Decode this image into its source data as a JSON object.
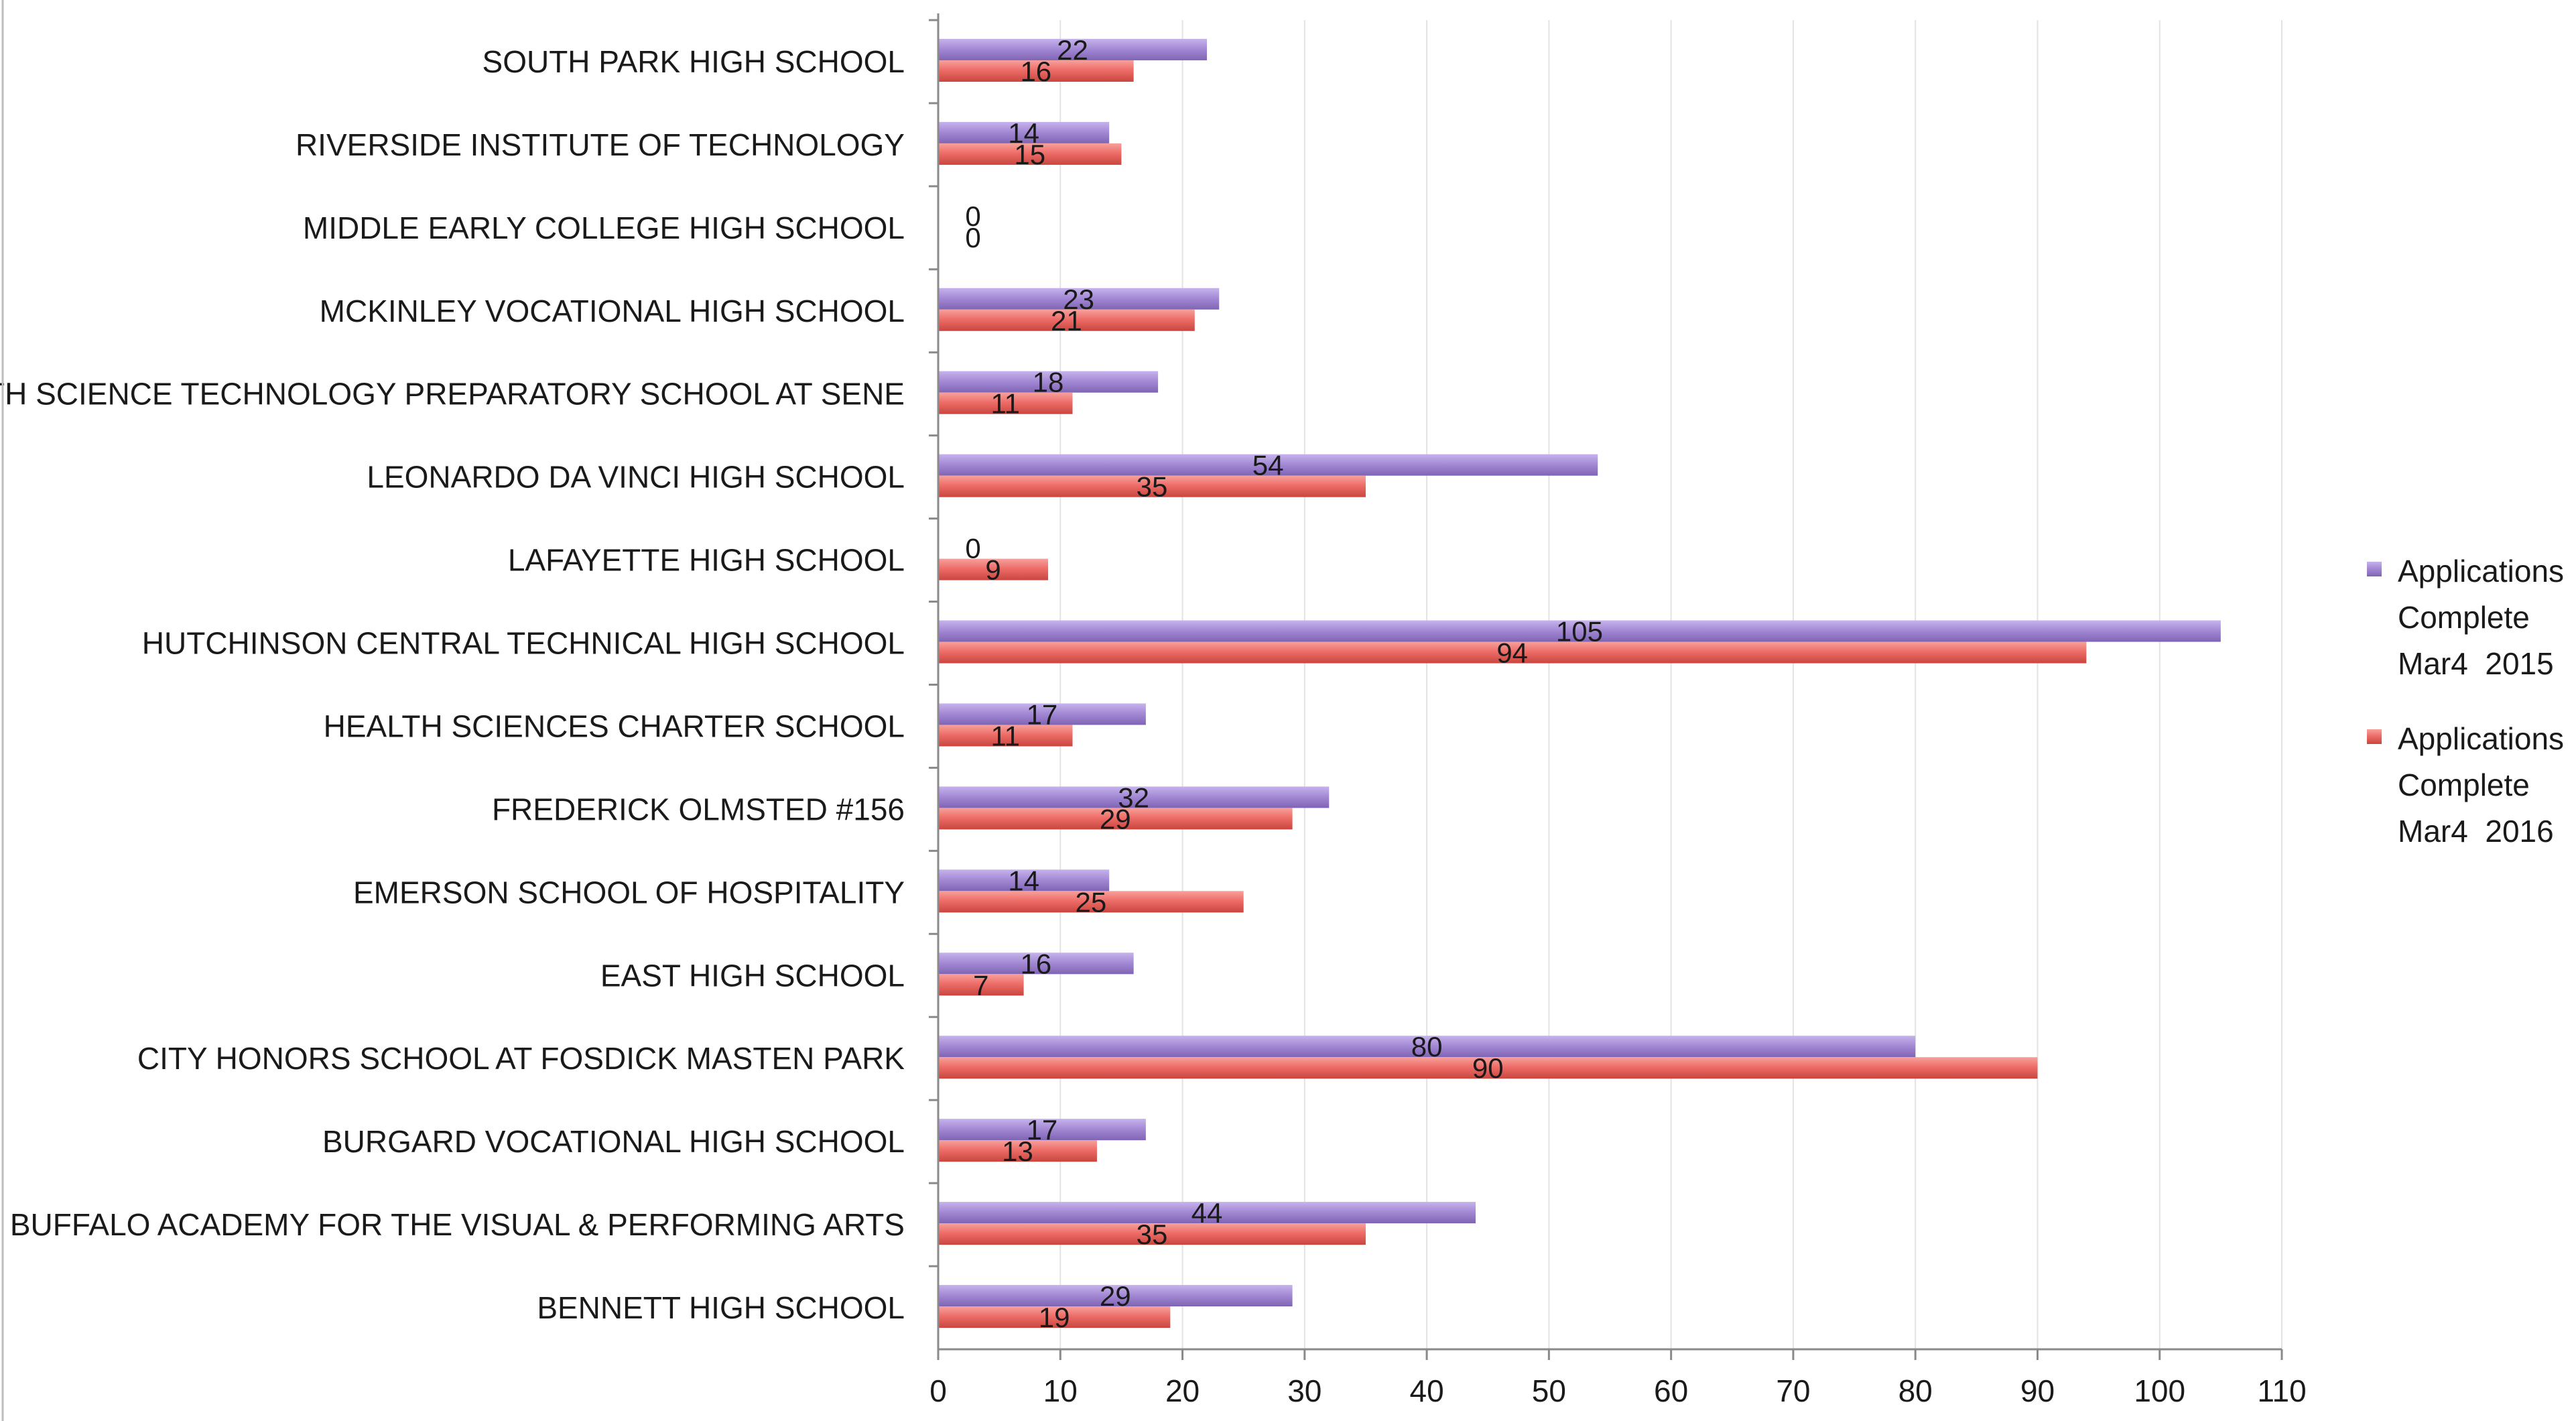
{
  "chart_data": {
    "type": "bar",
    "orientation": "horizontal",
    "categories": [
      "SOUTH PARK HIGH SCHOOL",
      "RIVERSIDE INSTITUTE OF TECHNOLOGY",
      "MIDDLE EARLY COLLEGE HIGH SCHOOL",
      "MCKINLEY VOCATIONAL HIGH SCHOOL",
      "MATH SCIENCE TECHNOLOGY PREPARATORY SCHOOL AT SENE",
      "LEONARDO DA VINCI HIGH SCHOOL",
      "LAFAYETTE HIGH SCHOOL",
      "HUTCHINSON CENTRAL TECHNICAL HIGH SCHOOL",
      "HEALTH SCIENCES CHARTER SCHOOL",
      "FREDERICK OLMSTED #156",
      "EMERSON SCHOOL OF HOSPITALITY",
      "EAST HIGH SCHOOL",
      "CITY HONORS SCHOOL AT FOSDICK MASTEN PARK",
      "BURGARD VOCATIONAL HIGH SCHOOL",
      "BUFFALO ACADEMY FOR THE VISUAL & PERFORMING ARTS",
      "BENNETT HIGH SCHOOL"
    ],
    "series": [
      {
        "name": "Applications Complete Mar4  2015",
        "legend_lines": [
          "Applications",
          "Complete",
          "Mar4  2015"
        ],
        "color": "#a58bd6",
        "values": [
          22,
          14,
          0,
          23,
          18,
          54,
          0,
          105,
          17,
          32,
          14,
          16,
          80,
          17,
          44,
          29
        ]
      },
      {
        "name": "Applications Complete Mar4  2016",
        "legend_lines": [
          "Applications",
          "Complete",
          "Mar4  2016"
        ],
        "color": "#ee6d68",
        "values": [
          16,
          15,
          0,
          21,
          11,
          35,
          9,
          94,
          11,
          29,
          25,
          7,
          90,
          13,
          35,
          19
        ]
      }
    ],
    "xlim": [
      0,
      110
    ],
    "xticks": [
      0,
      10,
      20,
      30,
      40,
      50,
      60,
      70,
      80,
      90,
      100,
      110
    ],
    "grid": true,
    "legend_position": "right"
  }
}
